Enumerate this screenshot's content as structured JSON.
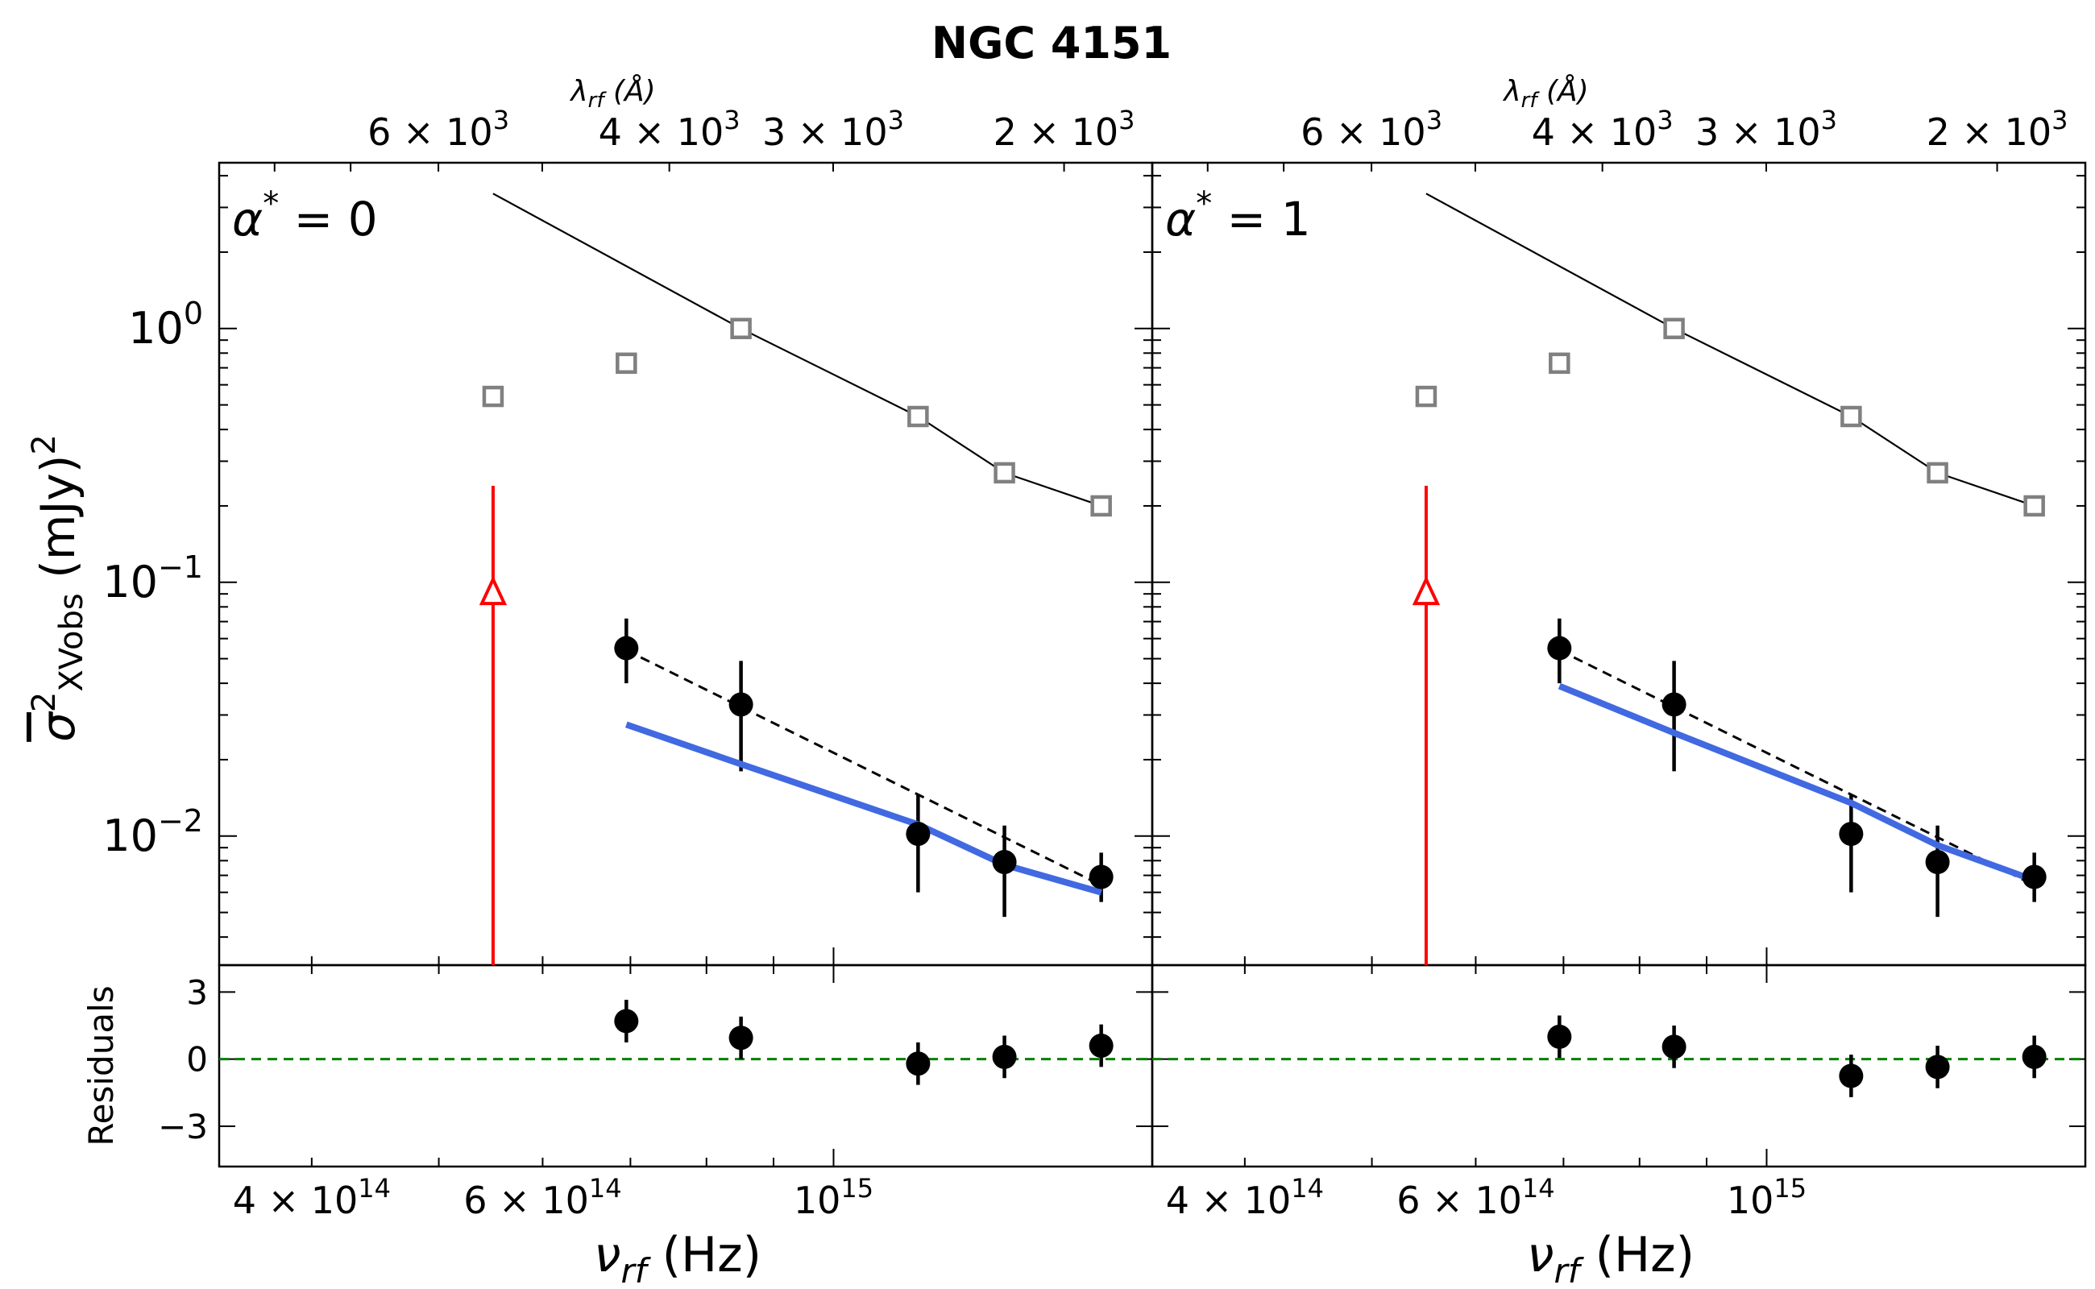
{
  "figure": {
    "title": "NGC 4151"
  },
  "chart_data": [
    {
      "type": "scatter",
      "panel": "left",
      "annotation": "α* = 0",
      "annotation_base": "α",
      "annotation_sup": "*",
      "annotation_rest": "= 0",
      "xlabel": "ν_rf (Hz)",
      "xlabel_sym": "ν",
      "xlabel_sub": "rf",
      "xlabel_unit": "(Hz)",
      "top_xlabel": "λ_rf (Å)",
      "top_xlabel_sym": "λ",
      "top_xlabel_sub": "rf",
      "top_xlabel_unit": "(Å)",
      "ylabel": "σ̄²_XVobs (mJy)²",
      "ylabel_parts": [
        "σ",
        "2",
        "XVobs",
        "(mJy)",
        "2"
      ],
      "x_scale": "log",
      "y_scale": "log",
      "xlim": [
        340000000000000.0,
        1750000000000000.0
      ],
      "ylim": [
        0.0031,
        4.5
      ],
      "x_ticks": [
        {
          "value": 400000000000000.0,
          "mant": "4 × 10",
          "exp": "14"
        },
        {
          "value": 600000000000000.0,
          "mant": "6 × 10",
          "exp": "14"
        },
        {
          "value": 1000000000000000.0,
          "mant": "10",
          "exp": "15"
        }
      ],
      "top_x_ticks": [
        {
          "lambda_A": 6000,
          "mant": "6 × 10",
          "exp": "3"
        },
        {
          "lambda_A": 4000,
          "mant": "4 × 10",
          "exp": "3"
        },
        {
          "lambda_A": 3000,
          "mant": "3 × 10",
          "exp": "3"
        },
        {
          "lambda_A": 2000,
          "mant": "2 × 10",
          "exp": "3"
        }
      ],
      "y_ticks": [
        {
          "value": 1,
          "mant": "10",
          "exp": "0"
        },
        {
          "value": 0.1,
          "mant": "10",
          "exp": "−1"
        },
        {
          "value": 0.01,
          "mant": "10",
          "exp": "−2"
        }
      ],
      "series": [
        {
          "name": "model_total",
          "kind": "line",
          "color": "#000000",
          "x": [
            550000000000000.0,
            850000000000000.0,
            1160000000000000.0,
            1350000000000000.0,
            1600000000000000.0
          ],
          "y": [
            3.4,
            1.0,
            0.45,
            0.27,
            0.2
          ]
        },
        {
          "name": "total_squares",
          "kind": "square_marker",
          "color": "#808080",
          "x": [
            550000000000000.0,
            695000000000000.0,
            850000000000000.0,
            1160000000000000.0,
            1350000000000000.0,
            1600000000000000.0
          ],
          "y": [
            0.54,
            0.73,
            1.0,
            0.45,
            0.27,
            0.2
          ]
        },
        {
          "name": "upper_limit",
          "kind": "arrow_limit",
          "color": "#ff0000",
          "x": 550000000000000.0,
          "y": 0.09,
          "y_low": 0.0031,
          "y_high": 0.24
        },
        {
          "name": "observed",
          "kind": "errorbar",
          "color": "#000000",
          "x": [
            695000000000000.0,
            850000000000000.0,
            1160000000000000.0,
            1350000000000000.0,
            1600000000000000.0
          ],
          "y": [
            0.055,
            0.033,
            0.0102,
            0.0079,
            0.0069
          ],
          "y_low": [
            0.04,
            0.018,
            0.006,
            0.0048,
            0.0055
          ],
          "y_high": [
            0.072,
            0.049,
            0.0145,
            0.011,
            0.0086
          ]
        },
        {
          "name": "fit_dashed",
          "kind": "dashed_line",
          "color": "#000000",
          "x": [
            695000000000000.0,
            1600000000000000.0
          ],
          "y": [
            0.054,
            0.0064
          ]
        },
        {
          "name": "model_variance",
          "kind": "thick_line",
          "color": "#4169e1",
          "x": [
            695000000000000.0,
            850000000000000.0,
            1160000000000000.0,
            1350000000000000.0,
            1600000000000000.0
          ],
          "y": [
            0.0275,
            0.0192,
            0.0111,
            0.0077,
            0.006
          ]
        }
      ],
      "residuals": {
        "ylabel": "Residuals",
        "ylim": [
          -4.8,
          4.2
        ],
        "y_ticks": [
          {
            "value": 3,
            "label": "3"
          },
          {
            "value": 0,
            "label": "0"
          },
          {
            "value": -3,
            "label": "−3"
          }
        ],
        "zero_line_color": "#008000",
        "x": [
          695000000000000.0,
          850000000000000.0,
          1160000000000000.0,
          1350000000000000.0,
          1600000000000000.0
        ],
        "y": [
          1.7,
          0.95,
          -0.2,
          0.1,
          0.6
        ],
        "err": [
          0.95,
          0.95,
          0.95,
          0.95,
          0.95
        ]
      }
    },
    {
      "type": "scatter",
      "panel": "right",
      "annotation": "α* = 1",
      "annotation_base": "α",
      "annotation_sup": "*",
      "annotation_rest": "= 1",
      "xlabel": "ν_rf (Hz)",
      "xlabel_sym": "ν",
      "xlabel_sub": "rf",
      "xlabel_unit": "(Hz)",
      "top_xlabel": "λ_rf (Å)",
      "top_xlabel_sym": "λ",
      "top_xlabel_sub": "rf",
      "top_xlabel_unit": "(Å)",
      "ylabel": "",
      "x_scale": "log",
      "y_scale": "log",
      "xlim": [
        340000000000000.0,
        1750000000000000.0
      ],
      "ylim": [
        0.0031,
        4.5
      ],
      "x_ticks": [
        {
          "value": 400000000000000.0,
          "mant": "4 × 10",
          "exp": "14"
        },
        {
          "value": 600000000000000.0,
          "mant": "6 × 10",
          "exp": "14"
        },
        {
          "value": 1000000000000000.0,
          "mant": "10",
          "exp": "15"
        }
      ],
      "top_x_ticks": [
        {
          "lambda_A": 6000,
          "mant": "6 × 10",
          "exp": "3"
        },
        {
          "lambda_A": 4000,
          "mant": "4 × 10",
          "exp": "3"
        },
        {
          "lambda_A": 3000,
          "mant": "3 × 10",
          "exp": "3"
        },
        {
          "lambda_A": 2000,
          "mant": "2 × 10",
          "exp": "3"
        }
      ],
      "y_ticks": [
        {
          "value": 1,
          "mant": "",
          "exp": ""
        },
        {
          "value": 0.1,
          "mant": "",
          "exp": ""
        },
        {
          "value": 0.01,
          "mant": "",
          "exp": ""
        }
      ],
      "series": [
        {
          "name": "model_total",
          "kind": "line",
          "color": "#000000",
          "x": [
            550000000000000.0,
            850000000000000.0,
            1160000000000000.0,
            1350000000000000.0,
            1600000000000000.0
          ],
          "y": [
            3.4,
            1.0,
            0.45,
            0.27,
            0.2
          ]
        },
        {
          "name": "total_squares",
          "kind": "square_marker",
          "color": "#808080",
          "x": [
            550000000000000.0,
            695000000000000.0,
            850000000000000.0,
            1160000000000000.0,
            1350000000000000.0,
            1600000000000000.0
          ],
          "y": [
            0.54,
            0.73,
            1.0,
            0.45,
            0.27,
            0.2
          ]
        },
        {
          "name": "upper_limit",
          "kind": "arrow_limit",
          "color": "#ff0000",
          "x": 550000000000000.0,
          "y": 0.09,
          "y_low": 0.0031,
          "y_high": 0.24
        },
        {
          "name": "observed",
          "kind": "errorbar",
          "color": "#000000",
          "x": [
            695000000000000.0,
            850000000000000.0,
            1160000000000000.0,
            1350000000000000.0,
            1600000000000000.0
          ],
          "y": [
            0.055,
            0.033,
            0.0102,
            0.0079,
            0.0069
          ],
          "y_low": [
            0.04,
            0.018,
            0.006,
            0.0048,
            0.0055
          ],
          "y_high": [
            0.072,
            0.049,
            0.0145,
            0.011,
            0.0086
          ]
        },
        {
          "name": "fit_dashed",
          "kind": "dashed_line",
          "color": "#000000",
          "x": [
            695000000000000.0,
            1600000000000000.0
          ],
          "y": [
            0.054,
            0.0064
          ]
        },
        {
          "name": "model_variance",
          "kind": "thick_line",
          "color": "#4169e1",
          "x": [
            695000000000000.0,
            850000000000000.0,
            1160000000000000.0,
            1350000000000000.0,
            1600000000000000.0
          ],
          "y": [
            0.039,
            0.0255,
            0.0135,
            0.0092,
            0.0067
          ]
        }
      ],
      "residuals": {
        "ylabel": "",
        "ylim": [
          -4.8,
          4.2
        ],
        "y_ticks": [
          {
            "value": 3,
            "label": ""
          },
          {
            "value": 0,
            "label": ""
          },
          {
            "value": -3,
            "label": ""
          }
        ],
        "zero_line_color": "#008000",
        "x": [
          695000000000000.0,
          850000000000000.0,
          1160000000000000.0,
          1350000000000000.0,
          1600000000000000.0
        ],
        "y": [
          1.0,
          0.55,
          -0.75,
          -0.35,
          0.1
        ],
        "err": [
          0.95,
          0.95,
          0.95,
          0.95,
          0.95
        ]
      }
    }
  ]
}
